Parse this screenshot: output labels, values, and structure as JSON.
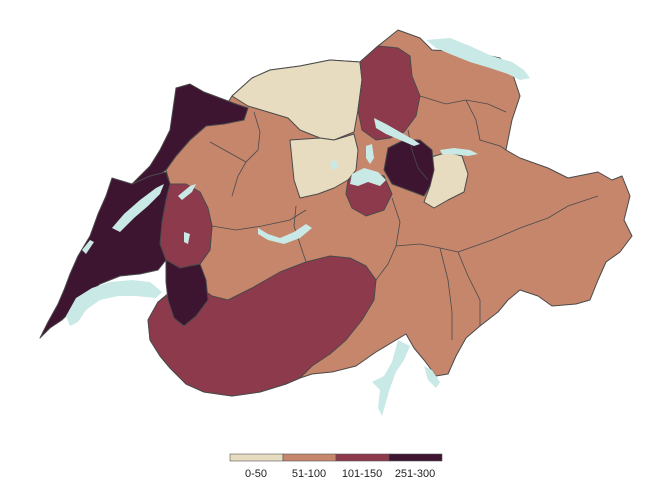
{
  "map": {
    "title": "",
    "region": "Switzerland cantons choropleth"
  },
  "legend": {
    "items": [
      {
        "label": "0-50",
        "color": "#e8dcc0"
      },
      {
        "label": "51-100",
        "color": "#c5866c"
      },
      {
        "label": "101-150",
        "color": "#8e3a4d"
      },
      {
        "label": "251-300",
        "color": "#3e1530"
      }
    ]
  },
  "colors": {
    "lake": "#c9e9e6",
    "border": "#4a4a4a",
    "background": "#ffffff"
  }
}
